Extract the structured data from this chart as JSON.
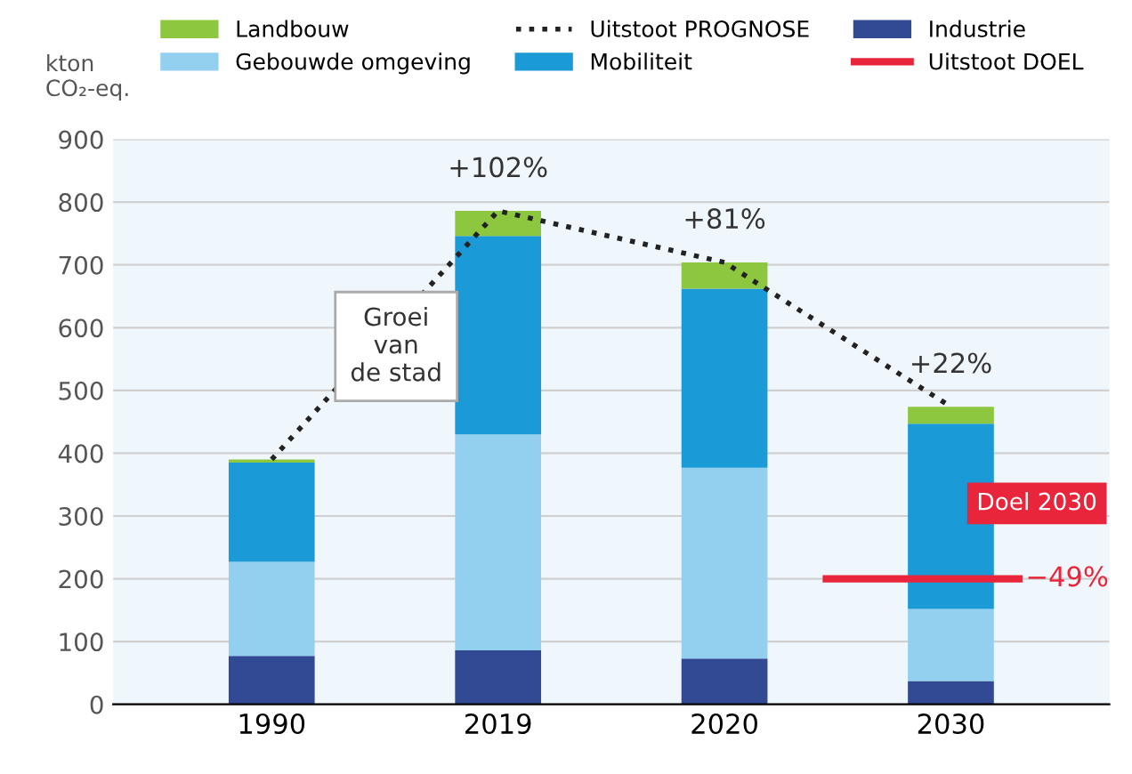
{
  "chart_data": {
    "type": "bar",
    "stacked": true,
    "ylabel": "kton\nCO₂-eq.",
    "categories": [
      "1990",
      "2019",
      "2020",
      "2030"
    ],
    "series": [
      {
        "name": "Industrie",
        "color": "#324a94",
        "values": [
          77,
          86,
          73,
          37
        ]
      },
      {
        "name": "Gebouwde omgeving",
        "color": "#93d0f0",
        "values": [
          150,
          344,
          304,
          115
        ]
      },
      {
        "name": "Mobiliteit",
        "color": "#1a9ad6",
        "values": [
          158,
          316,
          285,
          295
        ]
      },
      {
        "name": "Landbouw",
        "color": "#8dc63f",
        "values": [
          5,
          40,
          42,
          27
        ]
      },
      {
        "name": "Uitstoot PROGNOSE",
        "type": "line",
        "line_style": "dotted",
        "color": "#222222",
        "values": [
          390,
          786,
          704,
          474
        ]
      }
    ],
    "ref_lines": [
      {
        "axis": "y",
        "value": 200,
        "label": "Uitstoot DOEL",
        "color": "#e8253b"
      }
    ],
    "annotations": [
      {
        "text": "+102%",
        "x": "2019",
        "y": 786
      },
      {
        "text": "+81%",
        "x": "2020",
        "y": 704
      },
      {
        "text": "+22%",
        "x": "2030",
        "y": 474
      },
      {
        "text": "−49%",
        "x": "2030",
        "y": 200
      },
      "Groei\nvan\nde stad",
      "Doel 2030"
    ],
    "ylim": [
      0,
      900
    ],
    "yticks": [
      0,
      100,
      200,
      300,
      400,
      500,
      600,
      700,
      800,
      900
    ],
    "grid": "y",
    "legend": "top"
  }
}
